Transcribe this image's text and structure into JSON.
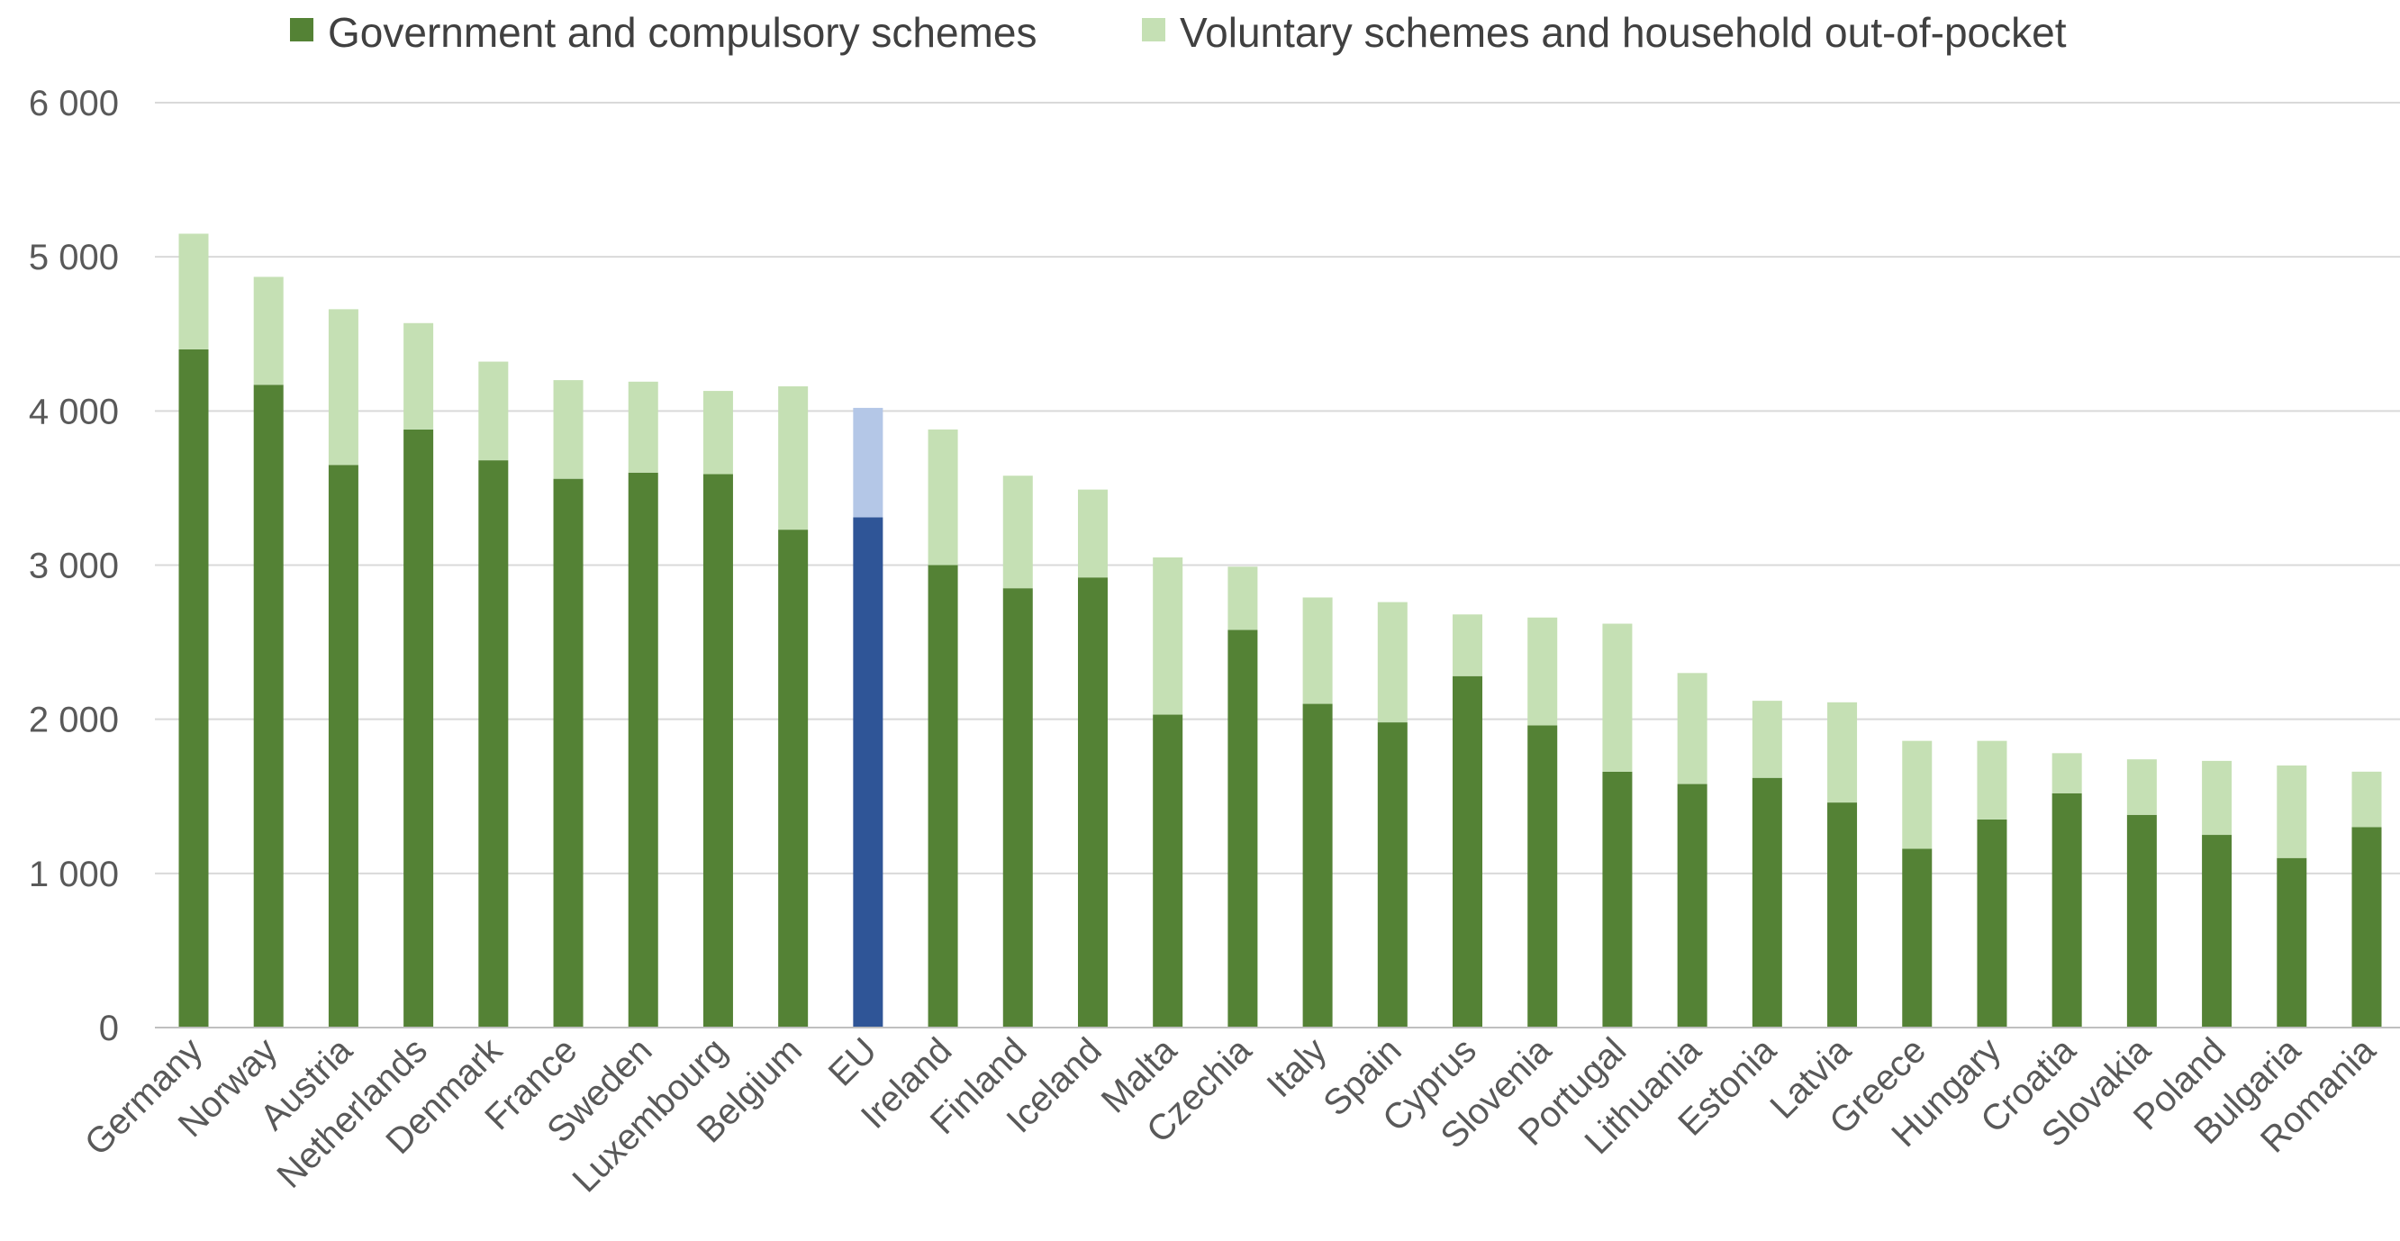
{
  "colors": {
    "government": "#548235",
    "voluntary": "#c5e0b4",
    "eu_government": "#2f5597",
    "eu_voluntary": "#b4c7e7",
    "grid": "#d9d9d9",
    "axis": "#bfbfbf"
  },
  "chart_data": {
    "type": "bar",
    "stacked": true,
    "title": "",
    "xlabel": "",
    "ylabel": "",
    "ylim": [
      0,
      6000
    ],
    "yticks": [
      0,
      1000,
      2000,
      3000,
      4000,
      5000,
      6000
    ],
    "ytick_labels": [
      "0",
      "1 000",
      "2 000",
      "3 000",
      "4 000",
      "5 000",
      "6 000"
    ],
    "grid": true,
    "legend_position": "top",
    "highlight_category": "EU",
    "categories": [
      "Germany",
      "Norway",
      "Austria",
      "Netherlands",
      "Denmark",
      "France",
      "Sweden",
      "Luxembourg",
      "Belgium",
      "EU",
      "Ireland",
      "Finland",
      "Iceland",
      "Malta",
      "Czechia",
      "Italy",
      "Spain",
      "Cyprus",
      "Slovenia",
      "Portugal",
      "Lithuania",
      "Estonia",
      "Latvia",
      "Greece",
      "Hungary",
      "Croatia",
      "Slovakia",
      "Poland",
      "Bulgaria",
      "Romania"
    ],
    "series": [
      {
        "name": "Government and compulsory schemes",
        "values": [
          4400,
          4170,
          3650,
          3880,
          3680,
          3560,
          3600,
          3590,
          3230,
          3310,
          3000,
          2850,
          2920,
          2030,
          2580,
          2100,
          1980,
          2280,
          1960,
          1660,
          1580,
          1620,
          1460,
          1160,
          1350,
          1520,
          1380,
          1250,
          1100,
          1300
        ]
      },
      {
        "name": "Voluntary schemes and household out-of-pocket",
        "values": [
          750,
          700,
          1010,
          690,
          640,
          640,
          590,
          540,
          930,
          710,
          880,
          730,
          570,
          1020,
          410,
          690,
          780,
          400,
          700,
          960,
          720,
          500,
          650,
          700,
          510,
          260,
          360,
          480,
          600,
          360
        ]
      }
    ]
  }
}
